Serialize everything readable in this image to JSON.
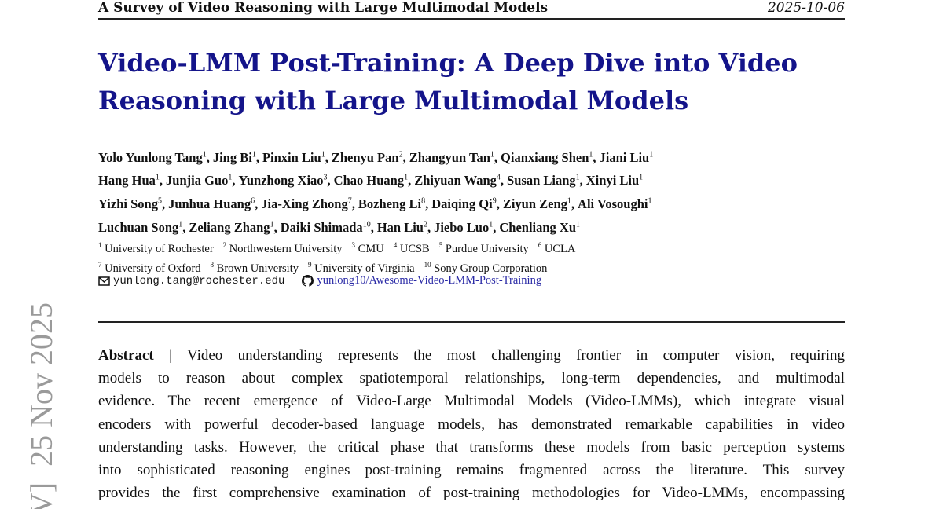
{
  "header": {
    "running_title": "A Survey of Video Reasoning with Large Multimodal Models",
    "date": "2025-10-06"
  },
  "title": [
    "Video-LMM Post-Training: A Deep Dive into Video",
    "Reasoning with Large Multimodal Models"
  ],
  "authors": [
    [
      {
        "name": "Yolo Yunlong Tang",
        "aff": "1"
      },
      {
        "name": "Jing Bi",
        "aff": "1"
      },
      {
        "name": "Pinxin Liu",
        "aff": "1"
      },
      {
        "name": "Zhenyu Pan",
        "aff": "2"
      },
      {
        "name": "Zhangyun Tan",
        "aff": "1"
      },
      {
        "name": "Qianxiang Shen",
        "aff": "1"
      },
      {
        "name": "Jiani Liu",
        "aff": "1"
      }
    ],
    [
      {
        "name": "Hang Hua",
        "aff": "1"
      },
      {
        "name": "Junjia Guo",
        "aff": "1"
      },
      {
        "name": "Yunzhong Xiao",
        "aff": "3"
      },
      {
        "name": "Chao Huang",
        "aff": "1"
      },
      {
        "name": "Zhiyuan Wang",
        "aff": "4"
      },
      {
        "name": "Susan Liang",
        "aff": "1"
      },
      {
        "name": "Xinyi Liu",
        "aff": "1"
      }
    ],
    [
      {
        "name": "Yizhi Song",
        "aff": "5"
      },
      {
        "name": "Junhua Huang",
        "aff": "6"
      },
      {
        "name": "Jia-Xing Zhong",
        "aff": "7"
      },
      {
        "name": "Bozheng Li",
        "aff": "8"
      },
      {
        "name": "Daiqing Qi",
        "aff": "9"
      },
      {
        "name": "Ziyun Zeng",
        "aff": "1"
      },
      {
        "name": "Ali Vosoughi",
        "aff": "1"
      }
    ],
    [
      {
        "name": "Luchuan Song",
        "aff": "1"
      },
      {
        "name": "Zeliang Zhang",
        "aff": "1"
      },
      {
        "name": "Daiki Shimada",
        "aff": "10"
      },
      {
        "name": "Han Liu",
        "aff": "2"
      },
      {
        "name": "Jiebo Luo",
        "aff": "1"
      },
      {
        "name": "Chenliang Xu",
        "aff": "1"
      }
    ]
  ],
  "affiliations": [
    [
      {
        "num": "1",
        "name": "University of Rochester"
      },
      {
        "num": "2",
        "name": "Northwestern University"
      },
      {
        "num": "3",
        "name": "CMU"
      },
      {
        "num": "4",
        "name": "UCSB"
      },
      {
        "num": "5",
        "name": "Purdue University"
      },
      {
        "num": "6",
        "name": "UCLA"
      }
    ],
    [
      {
        "num": "7",
        "name": "University of Oxford"
      },
      {
        "num": "8",
        "name": "Brown University"
      },
      {
        "num": "9",
        "name": "University of Virginia"
      },
      {
        "num": "10",
        "name": "Sony Group Corporation"
      }
    ]
  ],
  "contact": {
    "email": "yunlong.tang@rochester.edu",
    "github": "yunlong10/Awesome-Video-LMM-Post-Training"
  },
  "abstract": {
    "label": "Abstract",
    "separator": "|",
    "lines": [
      "Video understanding represents the most challenging frontier in computer vision, requiring",
      "models to reason about complex spatiotemporal relationships, long-term dependencies, and multimodal",
      "evidence. The recent emergence of Video-Large Multimodal Models (Video-LMMs), which integrate visual",
      "encoders with powerful decoder-based language models, has demonstrated remarkable capabilities in video",
      "understanding tasks. However, the critical phase that transforms these models from basic perception systems",
      "into sophisticated reasoning engines—post-training—remains fragmented across the literature. This survey",
      "provides the first comprehensive examination of post-training methodologies for Video-LMMs, encompassing"
    ]
  },
  "sidebar": "V]  25 Nov 2025"
}
